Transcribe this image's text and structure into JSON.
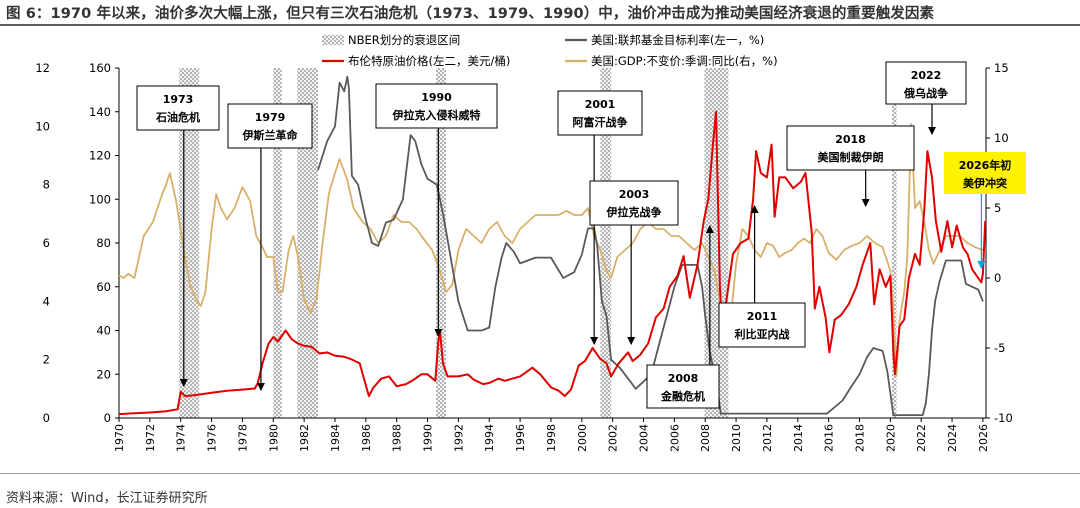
{
  "title": "图 6：1970 年以来，油价多次大幅上涨，但只有三次石油危机（1973、1979、1990）中，油价冲击成为推动美国经济衰退的重要触发因素",
  "source": "资料来源：Wind，长江证券研究所",
  "chart_data": {
    "type": "line",
    "grid": false,
    "legend_position": "top",
    "x_axis": {
      "ticks": [
        "1970",
        "1972",
        "1974",
        "1976",
        "1978",
        "1980",
        "1982",
        "1984",
        "1986",
        "1988",
        "1990",
        "1992",
        "1994",
        "1996",
        "1998",
        "2000",
        "2002",
        "2004",
        "2006",
        "2008",
        "2010",
        "2012",
        "2014",
        "2016",
        "2018",
        "2020",
        "2022",
        "2024",
        "2026"
      ],
      "range": [
        1970,
        2026.2
      ]
    },
    "y_left1": {
      "ticks": [
        "0",
        "2",
        "4",
        "6",
        "8",
        "10",
        "12"
      ],
      "range": [
        0,
        12
      ]
    },
    "y_left2": {
      "ticks": [
        "0",
        "20",
        "40",
        "60",
        "80",
        "100",
        "120",
        "140",
        "160"
      ],
      "range": [
        0,
        160
      ]
    },
    "y_right": {
      "ticks": [
        "-10",
        "-5",
        "0",
        "5",
        "10",
        "15"
      ],
      "range": [
        -10,
        15
      ]
    },
    "legend": [
      {
        "label": "NBER划分的衰退区间",
        "kind": "hatch",
        "color": "#b9b9b9"
      },
      {
        "label": "美国:联邦基金目标利率(左一，%)",
        "kind": "line",
        "color": "#595959"
      },
      {
        "label": "布伦特原油价格(左二，美元/桶)",
        "kind": "line",
        "color": "#e00000"
      },
      {
        "label": "美国:GDP:不变价:季调:同比(右，%)",
        "kind": "line",
        "color": "#d9b06a"
      }
    ],
    "recessions": [
      [
        1973.9,
        1975.2
      ],
      [
        1980.0,
        1980.55
      ],
      [
        1981.55,
        1982.9
      ],
      [
        1990.55,
        1991.2
      ],
      [
        2001.2,
        2001.9
      ],
      [
        2007.95,
        2009.5
      ],
      [
        2020.1,
        2020.4
      ]
    ],
    "series": [
      {
        "name": "美国:联邦基金目标利率(左一，%)",
        "axis": "left1",
        "color": "#595959",
        "x": [
          1982.9,
          1983.5,
          1984.0,
          1984.3,
          1984.6,
          1984.8,
          1984.9,
          1985.1,
          1985.5,
          1986.0,
          1986.4,
          1986.8,
          1987.3,
          1987.8,
          1988.4,
          1988.9,
          1989.2,
          1989.6,
          1990.0,
          1990.6,
          1991.0,
          1991.5,
          1992.0,
          1992.6,
          1993.5,
          1994.0,
          1994.4,
          1994.8,
          1995.1,
          1995.6,
          1996.0,
          1997.0,
          1998.0,
          1998.8,
          1999.5,
          2000.0,
          2000.4,
          2000.8,
          2001.0,
          2001.3,
          2001.6,
          2001.9,
          2002.5,
          2003.5,
          2004.5,
          2005.0,
          2005.5,
          2006.0,
          2006.5,
          2007.5,
          2007.8,
          2008.0,
          2008.3,
          2008.8,
          2009.0,
          2015.9,
          2016.9,
          2017.5,
          2018.0,
          2018.5,
          2018.9,
          2019.5,
          2019.8,
          2020.2,
          2022.1,
          2022.3,
          2022.5,
          2022.7,
          2022.9,
          2023.2,
          2023.6,
          2024.6,
          2024.9,
          2025.7,
          2026.0
        ],
        "values": [
          8.5,
          9.5,
          10.0,
          11.5,
          11.2,
          11.7,
          11.3,
          8.3,
          8.0,
          6.8,
          6.0,
          5.9,
          6.7,
          6.8,
          7.5,
          9.7,
          9.5,
          8.7,
          8.2,
          8.0,
          7.0,
          5.5,
          4.0,
          3.0,
          3.0,
          3.1,
          4.5,
          5.5,
          6.0,
          5.7,
          5.3,
          5.5,
          5.5,
          4.8,
          5.0,
          5.6,
          6.5,
          6.5,
          5.9,
          4.0,
          3.5,
          2.0,
          1.7,
          1.0,
          1.5,
          2.5,
          3.5,
          4.5,
          5.25,
          5.25,
          4.5,
          3.5,
          2.25,
          1.0,
          0.15,
          0.15,
          0.6,
          1.1,
          1.5,
          2.1,
          2.4,
          2.3,
          1.6,
          0.1,
          0.1,
          0.5,
          1.5,
          3.0,
          4.0,
          4.7,
          5.4,
          5.4,
          4.6,
          4.4,
          4.0
        ]
      },
      {
        "name": "布伦特原油价格(左二，美元/桶)",
        "axis": "left2",
        "color": "#e00000",
        "x": [
          1970.0,
          1971.0,
          1972.0,
          1973.0,
          1973.8,
          1974.0,
          1974.3,
          1975.0,
          1976.0,
          1977.0,
          1978.0,
          1978.8,
          1979.0,
          1979.3,
          1979.7,
          1980.0,
          1980.3,
          1980.8,
          1981.2,
          1981.6,
          1982.0,
          1982.5,
          1983.0,
          1983.5,
          1984.0,
          1984.6,
          1985.0,
          1985.6,
          1986.0,
          1986.2,
          1986.5,
          1987.0,
          1987.5,
          1988.0,
          1988.6,
          1989.0,
          1989.6,
          1990.0,
          1990.5,
          1990.7,
          1990.8,
          1991.0,
          1991.3,
          1992.0,
          1992.6,
          1993.0,
          1993.6,
          1994.0,
          1994.6,
          1995.0,
          1996.0,
          1996.8,
          1997.3,
          1998.0,
          1998.5,
          1998.9,
          1999.3,
          1999.8,
          2000.2,
          2000.7,
          2001.2,
          2001.6,
          2001.9,
          2002.4,
          2003.0,
          2003.3,
          2003.8,
          2004.3,
          2004.8,
          2005.3,
          2005.7,
          2006.2,
          2006.6,
          2007.0,
          2007.5,
          2007.9,
          2008.2,
          2008.5,
          2008.7,
          2008.95,
          2009.1,
          2009.4,
          2009.8,
          2010.3,
          2010.8,
          2011.1,
          2011.3,
          2011.6,
          2012.0,
          2012.3,
          2012.5,
          2012.8,
          2013.2,
          2013.7,
          2014.2,
          2014.5,
          2014.9,
          2015.1,
          2015.4,
          2015.8,
          2016.05,
          2016.4,
          2016.8,
          2017.3,
          2017.8,
          2018.2,
          2018.7,
          2018.95,
          2019.3,
          2019.7,
          2020.0,
          2020.2,
          2020.3,
          2020.6,
          2020.9,
          2021.2,
          2021.6,
          2021.9,
          2022.2,
          2022.4,
          2022.7,
          2022.95,
          2023.3,
          2023.7,
          2024.0,
          2024.3,
          2024.7,
          2025.0,
          2025.3,
          2025.6,
          2025.9,
          2026.0,
          2026.15
        ],
        "values": [
          1.8,
          2.2,
          2.5,
          3.0,
          4.0,
          12.0,
          10.0,
          10.5,
          11.5,
          12.5,
          13.0,
          13.5,
          16.0,
          25.0,
          34.0,
          37.0,
          35.0,
          40.0,
          36.0,
          34.0,
          33.0,
          32.5,
          29.5,
          30.0,
          28.5,
          28.0,
          27.0,
          25.0,
          15.0,
          10.0,
          14.0,
          18.0,
          19.0,
          14.5,
          15.5,
          17.0,
          20.0,
          20.0,
          17.0,
          35.0,
          40.0,
          25.0,
          19.0,
          19.0,
          20.0,
          17.5,
          15.5,
          16.0,
          18.0,
          17.0,
          19.0,
          23.0,
          20.0,
          14.0,
          12.5,
          10.0,
          13.0,
          24.0,
          26.0,
          32.0,
          27.0,
          25.0,
          19.0,
          25.0,
          30.0,
          26.0,
          29.0,
          34.0,
          46.0,
          50.0,
          60.0,
          65.0,
          74.0,
          55.0,
          70.0,
          90.0,
          100.0,
          125.0,
          140.0,
          60.0,
          40.0,
          55.0,
          75.0,
          80.0,
          82.0,
          100.0,
          122.0,
          112.0,
          110.0,
          125.0,
          92.0,
          110.0,
          110.0,
          105.0,
          108.0,
          112.0,
          85.0,
          50.0,
          60.0,
          46.0,
          30.0,
          45.0,
          47.0,
          52.0,
          60.0,
          70.0,
          80.0,
          52.0,
          68.0,
          60.0,
          65.0,
          30.0,
          20.0,
          42.0,
          45.0,
          64.0,
          75.0,
          70.0,
          95.0,
          122.0,
          110.0,
          90.0,
          76.0,
          90.0,
          78.0,
          88.0,
          78.0,
          75.0,
          68.0,
          65.0,
          62.0,
          66.0,
          90.0
        ]
      },
      {
        "name": "美国:GDP:不变价:季调:同比(右，%)",
        "axis": "right",
        "color": "#d9b06a",
        "x": [
          1970.0,
          1970.3,
          1970.6,
          1971.0,
          1971.6,
          1972.2,
          1972.8,
          1973.0,
          1973.3,
          1973.7,
          1974.2,
          1974.6,
          1975.0,
          1975.3,
          1975.6,
          1976.0,
          1976.3,
          1976.6,
          1977.0,
          1977.5,
          1978.0,
          1978.5,
          1978.9,
          1979.3,
          1979.6,
          1980.0,
          1980.3,
          1980.6,
          1981.0,
          1981.3,
          1981.6,
          1982.0,
          1982.4,
          1982.8,
          1983.2,
          1983.6,
          1984.0,
          1984.3,
          1984.8,
          1985.2,
          1985.8,
          1986.3,
          1986.8,
          1987.3,
          1987.8,
          1988.3,
          1988.8,
          1989.3,
          1989.8,
          1990.3,
          1990.8,
          1991.2,
          1991.6,
          1992.0,
          1992.5,
          1993.0,
          1993.5,
          1994.0,
          1994.5,
          1995.0,
          1995.5,
          1996.0,
          1996.5,
          1997.0,
          1997.5,
          1998.0,
          1998.5,
          1999.0,
          1999.5,
          2000.0,
          2000.4,
          2000.8,
          2001.2,
          2001.6,
          2001.9,
          2002.3,
          2002.8,
          2003.3,
          2003.8,
          2004.3,
          2004.8,
          2005.3,
          2005.8,
          2006.3,
          2006.8,
          2007.3,
          2007.8,
          2008.2,
          2008.6,
          2009.0,
          2009.3,
          2009.6,
          2010.0,
          2010.4,
          2010.8,
          2011.2,
          2011.6,
          2012.0,
          2012.4,
          2012.8,
          2013.2,
          2013.6,
          2014.0,
          2014.4,
          2014.8,
          2015.2,
          2015.6,
          2016.0,
          2016.5,
          2017.0,
          2017.5,
          2018.0,
          2018.5,
          2019.0,
          2019.5,
          2020.0,
          2020.2,
          2020.4,
          2020.6,
          2020.9,
          2021.1,
          2021.35,
          2021.6,
          2021.9,
          2022.2,
          2022.5,
          2022.8,
          2023.2,
          2023.6,
          2024.0,
          2024.5,
          2025.0,
          2025.5,
          2026.0
        ],
        "values": [
          0.2,
          0.0,
          0.3,
          0.0,
          3.0,
          4.0,
          6.0,
          6.5,
          7.5,
          5.5,
          2.0,
          -0.5,
          -1.5,
          -2.0,
          -1.0,
          3.5,
          6.0,
          5.0,
          4.2,
          5.0,
          6.5,
          5.5,
          3.0,
          2.2,
          1.5,
          1.5,
          -1.0,
          -1.0,
          2.0,
          3.0,
          1.5,
          -1.5,
          -2.5,
          -1.5,
          2.5,
          6.0,
          7.5,
          8.5,
          7.0,
          5.0,
          4.0,
          3.5,
          2.5,
          3.0,
          4.5,
          4.0,
          4.0,
          3.5,
          2.7,
          2.0,
          0.5,
          -1.0,
          -0.5,
          2.0,
          3.5,
          3.0,
          2.5,
          3.5,
          4.0,
          3.0,
          2.5,
          3.5,
          4.0,
          4.5,
          4.5,
          4.5,
          4.5,
          4.8,
          4.5,
          4.5,
          5.0,
          3.0,
          2.0,
          0.5,
          0.0,
          1.5,
          2.0,
          2.5,
          3.5,
          4.0,
          3.5,
          3.5,
          3.0,
          3.0,
          2.5,
          2.0,
          2.5,
          1.5,
          0.5,
          -2.0,
          -4.0,
          -3.5,
          1.0,
          3.5,
          3.0,
          2.0,
          1.5,
          2.5,
          2.3,
          1.5,
          1.8,
          2.0,
          2.5,
          2.8,
          2.5,
          3.5,
          3.0,
          1.8,
          1.3,
          2.0,
          2.3,
          2.5,
          3.0,
          2.5,
          2.2,
          0.5,
          -2.5,
          -7.0,
          -3.0,
          -1.0,
          1.5,
          11.0,
          5.0,
          5.5,
          4.0,
          2.0,
          1.0,
          2.0,
          3.0,
          3.0,
          3.0,
          2.5,
          2.2,
          2.0
        ]
      }
    ],
    "annotations": [
      {
        "text": [
          "1973",
          "石油危机"
        ],
        "target_year": 1974.2
      },
      {
        "text": [
          "1979",
          "伊斯兰革命"
        ],
        "target_year": 1979.2
      },
      {
        "text": [
          "1990",
          "伊拉克入侵科威特"
        ],
        "target_year": 1990.7
      },
      {
        "text": [
          "2001",
          "阿富汗战争"
        ],
        "target_year": 2000.8
      },
      {
        "text": [
          "2003",
          "伊拉克战争"
        ],
        "target_year": 2003.2
      },
      {
        "text": [
          "2008",
          "金融危机"
        ],
        "target_year": 2008.3
      },
      {
        "text": [
          "2011",
          "利比亚内战"
        ],
        "target_year": 2011.2
      },
      {
        "text": [
          "2018",
          "美国制裁伊朗"
        ],
        "target_year": 2018.4
      },
      {
        "text": [
          "2022",
          "俄乌战争"
        ],
        "target_year": 2022.7
      },
      {
        "text": [
          "2026年初",
          "美伊冲突"
        ],
        "target_year": 2025.9,
        "highlight": "#fff200",
        "arrow_color": "#00a0e9"
      }
    ]
  }
}
